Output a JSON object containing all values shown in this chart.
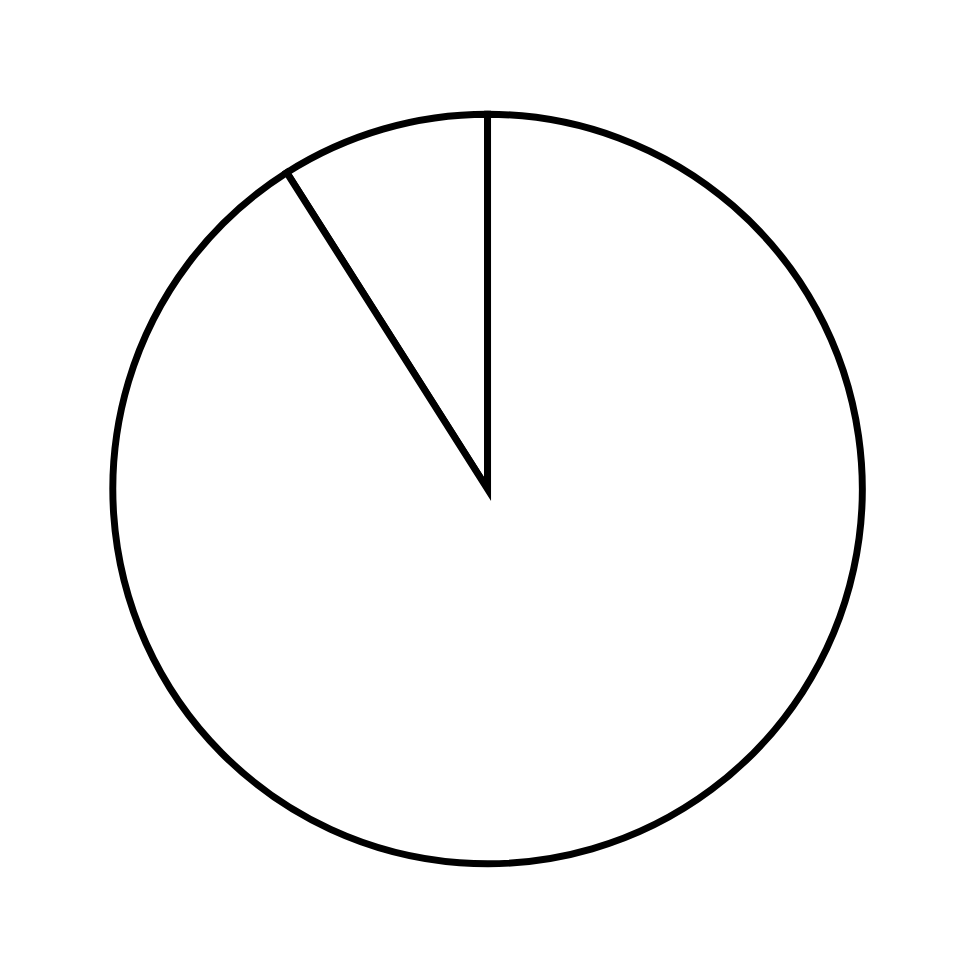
{
  "chart_data": {
    "type": "pie",
    "categories": [
      null,
      null
    ],
    "values": [
      9,
      91
    ],
    "colors": [
      "#ffffff",
      "#ffffff"
    ]
  }
}
